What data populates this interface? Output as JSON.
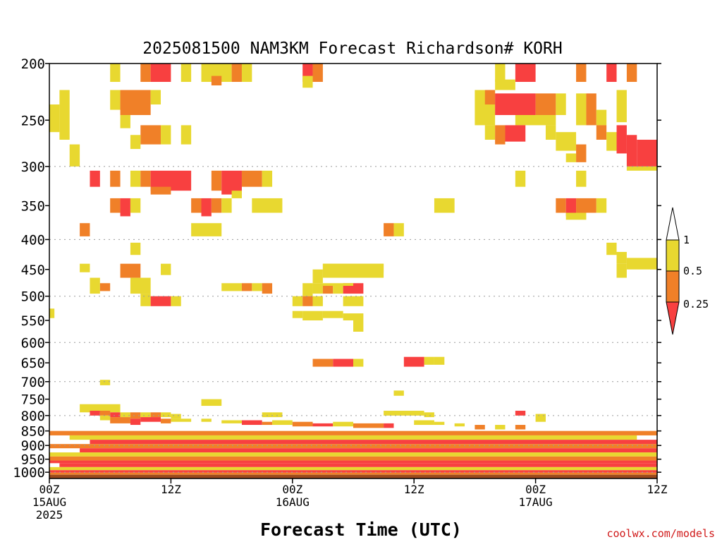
{
  "chart_data": {
    "type": "heatmap",
    "title": "2025081500 NAM3KM Forecast Richardson# KORH",
    "xlabel": "Forecast Time (UTC)",
    "ylabel": "",
    "watermark": "coolwx.com/models",
    "x_axis": {
      "unit": "forecast hours",
      "range": [
        0,
        60
      ],
      "ticks": [
        {
          "value": 0,
          "lines": [
            "00Z",
            "15AUG",
            "2025"
          ]
        },
        {
          "value": 12,
          "lines": [
            "12Z"
          ]
        },
        {
          "value": 24,
          "lines": [
            "00Z",
            "16AUG"
          ]
        },
        {
          "value": 36,
          "lines": [
            "12Z"
          ]
        },
        {
          "value": 48,
          "lines": [
            "00Z",
            "17AUG"
          ]
        },
        {
          "value": 60,
          "lines": [
            "12Z"
          ]
        }
      ]
    },
    "y_axis": {
      "unit": "hPa",
      "scale": "log",
      "reversed": true,
      "range": [
        1025,
        200
      ],
      "ticks": [
        200,
        250,
        300,
        350,
        400,
        450,
        500,
        550,
        600,
        650,
        700,
        750,
        800,
        850,
        900,
        950,
        1000
      ],
      "gridlines": [
        300,
        400,
        500,
        600,
        700,
        800,
        900,
        1000
      ]
    },
    "legend": {
      "placement": "right",
      "levels": [
        "0.25",
        "0.5",
        "1"
      ],
      "colors": {
        "lt_0.25": "#f84040",
        "0.25_0.5": "#f08028",
        "0.5_1": "#e8d830"
      }
    },
    "ground_color": "#9c4a1e",
    "ground_top_hPa": 1010,
    "cells_note": "each cell: [start_hour, end_hour, top_hPa, bottom_hPa, class] where class 1 = Ri<0.25, 2 = 0.25-0.5, 3 = 0.5-1",
    "cells": [
      [
        6,
        7,
        200,
        215,
        3
      ],
      [
        9,
        10,
        200,
        215,
        2
      ],
      [
        10,
        12,
        200,
        215,
        1
      ],
      [
        13,
        14,
        200,
        215,
        3
      ],
      [
        15,
        18,
        200,
        215,
        3
      ],
      [
        18,
        19,
        200,
        215,
        2
      ],
      [
        19,
        20,
        200,
        215,
        3
      ],
      [
        25,
        26,
        200,
        215,
        1
      ],
      [
        26,
        27,
        200,
        215,
        2
      ],
      [
        44,
        45,
        200,
        215,
        3
      ],
      [
        46,
        48,
        200,
        215,
        1
      ],
      [
        52,
        53,
        200,
        215,
        2
      ],
      [
        55,
        56,
        200,
        215,
        1
      ],
      [
        57,
        58,
        200,
        215,
        2
      ],
      [
        16,
        17,
        210,
        218,
        2
      ],
      [
        25,
        26,
        210,
        220,
        3
      ],
      [
        44,
        46,
        213,
        222,
        3
      ],
      [
        1,
        2,
        222,
        270,
        3
      ],
      [
        0,
        1,
        235,
        262,
        3
      ],
      [
        6,
        7,
        222,
        240,
        3
      ],
      [
        7,
        10,
        222,
        245,
        2
      ],
      [
        10,
        11,
        222,
        235,
        3
      ],
      [
        7,
        8,
        245,
        258,
        3
      ],
      [
        8,
        9,
        230,
        240,
        2
      ],
      [
        42,
        44,
        222,
        255,
        3
      ],
      [
        43,
        44,
        222,
        235,
        2
      ],
      [
        44,
        48,
        225,
        245,
        1
      ],
      [
        48,
        50,
        225,
        245,
        2
      ],
      [
        50,
        51,
        225,
        245,
        3
      ],
      [
        46,
        50,
        245,
        255,
        3
      ],
      [
        52,
        53,
        225,
        255,
        3
      ],
      [
        53,
        54,
        225,
        255,
        2
      ],
      [
        54,
        55,
        240,
        255,
        3
      ],
      [
        56,
        57,
        222,
        252,
        3
      ],
      [
        60,
        61,
        228,
        250,
        1
      ],
      [
        43,
        44,
        255,
        270,
        3
      ],
      [
        44,
        45,
        255,
        275,
        2
      ],
      [
        45,
        47,
        255,
        272,
        1
      ],
      [
        9,
        11,
        255,
        275,
        2
      ],
      [
        11,
        12,
        255,
        275,
        3
      ],
      [
        13,
        14,
        255,
        275,
        3
      ],
      [
        8,
        9,
        265,
        280,
        3
      ],
      [
        49,
        50,
        255,
        270,
        3
      ],
      [
        50,
        52,
        262,
        282,
        3
      ],
      [
        54,
        55,
        255,
        270,
        2
      ],
      [
        55,
        56,
        262,
        282,
        3
      ],
      [
        56,
        57,
        255,
        285,
        1
      ],
      [
        57,
        58,
        265,
        300,
        1
      ],
      [
        58,
        60,
        270,
        300,
        1
      ],
      [
        60,
        61,
        270,
        300,
        2
      ],
      [
        57,
        60,
        300,
        305,
        3
      ],
      [
        52,
        53,
        275,
        295,
        2
      ],
      [
        51,
        52,
        285,
        295,
        3
      ],
      [
        2,
        3,
        275,
        300,
        3
      ],
      [
        4,
        5,
        305,
        325,
        1
      ],
      [
        6,
        7,
        305,
        325,
        2
      ],
      [
        8,
        9,
        305,
        325,
        3
      ],
      [
        9,
        10,
        305,
        325,
        2
      ],
      [
        10,
        14,
        305,
        330,
        1
      ],
      [
        16,
        17,
        305,
        330,
        2
      ],
      [
        17,
        19,
        305,
        335,
        1
      ],
      [
        19,
        21,
        305,
        325,
        2
      ],
      [
        21,
        22,
        305,
        325,
        3
      ],
      [
        10,
        12,
        325,
        335,
        2
      ],
      [
        18,
        19,
        330,
        340,
        3
      ],
      [
        46,
        47,
        305,
        325,
        3
      ],
      [
        52,
        53,
        305,
        325,
        3
      ],
      [
        6,
        7,
        340,
        360,
        2
      ],
      [
        7,
        8,
        340,
        365,
        1
      ],
      [
        8,
        9,
        340,
        360,
        3
      ],
      [
        14,
        15,
        340,
        360,
        2
      ],
      [
        15,
        16,
        340,
        365,
        1
      ],
      [
        16,
        17,
        340,
        360,
        2
      ],
      [
        17,
        18,
        340,
        360,
        3
      ],
      [
        20,
        23,
        340,
        360,
        3
      ],
      [
        38,
        40,
        340,
        360,
        3
      ],
      [
        50,
        51,
        340,
        360,
        2
      ],
      [
        51,
        52,
        340,
        365,
        1
      ],
      [
        52,
        54,
        340,
        360,
        2
      ],
      [
        54,
        55,
        340,
        360,
        3
      ],
      [
        51,
        53,
        360,
        370,
        3
      ],
      [
        3,
        4,
        375,
        395,
        2
      ],
      [
        14,
        17,
        375,
        395,
        3
      ],
      [
        33,
        34,
        375,
        395,
        2
      ],
      [
        34,
        35,
        375,
        395,
        3
      ],
      [
        8,
        9,
        405,
        425,
        3
      ],
      [
        55,
        56,
        405,
        425,
        3
      ],
      [
        56,
        57,
        420,
        440,
        3
      ],
      [
        57,
        60,
        430,
        450,
        3
      ],
      [
        56,
        57,
        440,
        465,
        3
      ],
      [
        3,
        4,
        440,
        455,
        3
      ],
      [
        7,
        9,
        440,
        465,
        2
      ],
      [
        11,
        12,
        440,
        460,
        3
      ],
      [
        27,
        33,
        440,
        465,
        3
      ],
      [
        26,
        27,
        450,
        475,
        3
      ],
      [
        27,
        33,
        440,
        455,
        3
      ],
      [
        4,
        5,
        465,
        495,
        3
      ],
      [
        5,
        6,
        475,
        490,
        2
      ],
      [
        8,
        10,
        465,
        495,
        3
      ],
      [
        17,
        19,
        475,
        490,
        3
      ],
      [
        19,
        20,
        475,
        490,
        2
      ],
      [
        20,
        21,
        475,
        490,
        3
      ],
      [
        21,
        22,
        475,
        495,
        2
      ],
      [
        25,
        26,
        475,
        500,
        3
      ],
      [
        26,
        27,
        480,
        495,
        3
      ],
      [
        27,
        28,
        480,
        495,
        2
      ],
      [
        28,
        29,
        480,
        495,
        3
      ],
      [
        29,
        31,
        475,
        495,
        1
      ],
      [
        26,
        30,
        475,
        480,
        3
      ],
      [
        9,
        10,
        495,
        520,
        3
      ],
      [
        10,
        12,
        500,
        520,
        1
      ],
      [
        12,
        13,
        500,
        520,
        3
      ],
      [
        24,
        25,
        500,
        520,
        3
      ],
      [
        25,
        26,
        500,
        520,
        2
      ],
      [
        26,
        27,
        500,
        520,
        3
      ],
      [
        29,
        31,
        500,
        520,
        3
      ],
      [
        0,
        0.5,
        525,
        545,
        3
      ],
      [
        24,
        25,
        530,
        545,
        3
      ],
      [
        25,
        27,
        530,
        550,
        3
      ],
      [
        27,
        29,
        530,
        545,
        3
      ],
      [
        29,
        30,
        535,
        550,
        3
      ],
      [
        30,
        31,
        535,
        575,
        3
      ],
      [
        26,
        28,
        640,
        660,
        2
      ],
      [
        28,
        30,
        640,
        660,
        1
      ],
      [
        30,
        31,
        640,
        660,
        3
      ],
      [
        35,
        37,
        635,
        660,
        1
      ],
      [
        37,
        38,
        635,
        655,
        3
      ],
      [
        38,
        39,
        635,
        655,
        3
      ],
      [
        5,
        6,
        695,
        710,
        3
      ],
      [
        34,
        35,
        725,
        740,
        3
      ],
      [
        15,
        17,
        750,
        770,
        3
      ],
      [
        3,
        7,
        765,
        790,
        3
      ],
      [
        4,
        5,
        785,
        800,
        1
      ],
      [
        5,
        6,
        785,
        800,
        2
      ],
      [
        6,
        7,
        790,
        805,
        1
      ],
      [
        7,
        8,
        790,
        805,
        3
      ],
      [
        8,
        9,
        790,
        810,
        2
      ],
      [
        9,
        10,
        790,
        805,
        3
      ],
      [
        10,
        11,
        790,
        805,
        2
      ],
      [
        11,
        12,
        790,
        805,
        3
      ],
      [
        12,
        13,
        795,
        810,
        3
      ],
      [
        21,
        22,
        790,
        805,
        3
      ],
      [
        22,
        23,
        790,
        805,
        3
      ],
      [
        33,
        37,
        785,
        800,
        3
      ],
      [
        37,
        38,
        790,
        805,
        3
      ],
      [
        46,
        47,
        785,
        800,
        1
      ],
      [
        48,
        49,
        795,
        820,
        3
      ],
      [
        5,
        6,
        800,
        815,
        3
      ],
      [
        6,
        8,
        805,
        825,
        2
      ],
      [
        8,
        9,
        810,
        830,
        1
      ],
      [
        9,
        11,
        805,
        820,
        1
      ],
      [
        11,
        12,
        810,
        825,
        2
      ],
      [
        12,
        14,
        810,
        820,
        3
      ],
      [
        15,
        16,
        810,
        820,
        3
      ],
      [
        17,
        19,
        815,
        825,
        3
      ],
      [
        19,
        21,
        815,
        830,
        1
      ],
      [
        21,
        22,
        820,
        830,
        2
      ],
      [
        22,
        24,
        815,
        830,
        3
      ],
      [
        24,
        26,
        820,
        835,
        2
      ],
      [
        26,
        28,
        825,
        835,
        1
      ],
      [
        28,
        30,
        820,
        835,
        3
      ],
      [
        30,
        33,
        825,
        840,
        2
      ],
      [
        33,
        34,
        825,
        840,
        1
      ],
      [
        36,
        38,
        815,
        830,
        3
      ],
      [
        38,
        39,
        820,
        830,
        3
      ],
      [
        40,
        41,
        825,
        835,
        3
      ],
      [
        42,
        43,
        830,
        845,
        2
      ],
      [
        44,
        45,
        830,
        845,
        3
      ],
      [
        46,
        47,
        830,
        845,
        2
      ],
      [
        0,
        60,
        850,
        865,
        2
      ],
      [
        2,
        58,
        865,
        880,
        3
      ],
      [
        4,
        60,
        880,
        895,
        1
      ],
      [
        0,
        60,
        895,
        910,
        2
      ],
      [
        3,
        60,
        910,
        925,
        1
      ],
      [
        0,
        60,
        925,
        940,
        3
      ],
      [
        0,
        60,
        940,
        955,
        2
      ],
      [
        0,
        60,
        955,
        965,
        1
      ],
      [
        1,
        60,
        965,
        980,
        1
      ],
      [
        0,
        60,
        980,
        992,
        3
      ],
      [
        0,
        60,
        992,
        1002,
        1
      ],
      [
        0,
        60,
        1002,
        1010,
        2
      ]
    ]
  }
}
